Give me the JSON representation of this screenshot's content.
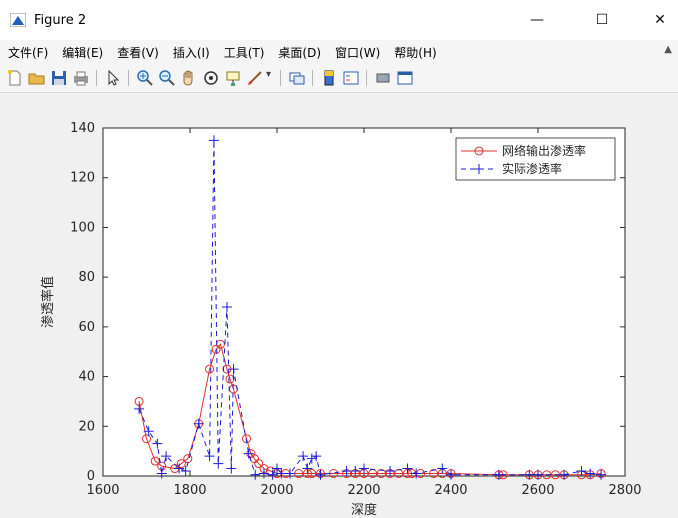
{
  "window": {
    "title": "Figure 2",
    "minimize": "—",
    "maximize": "☐",
    "close": "✕"
  },
  "menu": [
    {
      "label": "文件(F)"
    },
    {
      "label": "编辑(E)"
    },
    {
      "label": "查看(V)"
    },
    {
      "label": "插入(I)"
    },
    {
      "label": "工具(T)"
    },
    {
      "label": "桌面(D)"
    },
    {
      "label": "窗口(W)"
    },
    {
      "label": "帮助(H)"
    }
  ],
  "toolbar": {
    "icons": [
      "new-figure-icon",
      "open-file-icon",
      "save-icon",
      "print-icon",
      "pointer-icon",
      "zoom-in-icon",
      "zoom-out-icon",
      "pan-icon",
      "rotate-3d-icon",
      "data-cursor-icon",
      "brush-icon",
      "link-plot-icon",
      "colorbar-icon",
      "legend-icon",
      "hide-plot-tools-icon",
      "show-plot-tools-icon"
    ]
  },
  "chart_data": {
    "type": "line",
    "xlabel": "深度",
    "ylabel": "渗透率值",
    "xlim": [
      1600,
      2800
    ],
    "ylim": [
      0,
      140
    ],
    "xticks": [
      1600,
      1800,
      2000,
      2200,
      2400,
      2600,
      2800
    ],
    "yticks": [
      0,
      20,
      40,
      60,
      80,
      100,
      120,
      140
    ],
    "legend_position": "top-right",
    "colors": {
      "predicted": "#e0302e",
      "actual": "#1b1bd9"
    },
    "series": [
      {
        "name": "网络输出渗透率",
        "style": "solid-circle",
        "x": [
          1683,
          1700,
          1720,
          1735,
          1765,
          1780,
          1795,
          1820,
          1845,
          1860,
          1870,
          1885,
          1892,
          1900,
          1930,
          1940,
          1948,
          1958,
          1970,
          1985,
          2000,
          2020,
          2050,
          2070,
          2080,
          2100,
          2130,
          2160,
          2180,
          2200,
          2220,
          2240,
          2260,
          2280,
          2300,
          2310,
          2330,
          2360,
          2380,
          2400,
          2510,
          2520,
          2580,
          2600,
          2620,
          2640,
          2660,
          2700,
          2720,
          2745
        ],
        "y": [
          30,
          15,
          6,
          4,
          3,
          5,
          7,
          21,
          43,
          51,
          53,
          43,
          39,
          35,
          15,
          9,
          7,
          5,
          3,
          2,
          1,
          1,
          1,
          1,
          1,
          1,
          1,
          1,
          1,
          1,
          1,
          1,
          1,
          1,
          1,
          1,
          1,
          1,
          1,
          1,
          0.5,
          0.5,
          0.5,
          0.5,
          0.5,
          0.5,
          0.5,
          0.5,
          0.5,
          1
        ]
      },
      {
        "name": "实际渗透率",
        "style": "dashed-plus",
        "x": [
          1683,
          1705,
          1725,
          1735,
          1745,
          1775,
          1790,
          1820,
          1845,
          1855,
          1865,
          1885,
          1895,
          1900,
          1935,
          1950,
          1970,
          1990,
          2000,
          2010,
          2030,
          2060,
          2070,
          2080,
          2090,
          2100,
          2160,
          2180,
          2200,
          2260,
          2300,
          2320,
          2380,
          2400,
          2510,
          2580,
          2600,
          2660,
          2700,
          2720,
          2745
        ],
        "y": [
          27,
          18,
          13,
          1,
          8,
          3,
          2,
          21,
          8,
          135,
          5,
          68,
          3,
          43,
          9,
          0.5,
          1,
          0.5,
          3,
          1,
          1,
          8,
          3,
          7,
          8,
          0.5,
          2,
          2,
          3,
          2,
          3,
          1,
          3,
          0.5,
          0.5,
          0.5,
          0.5,
          0.5,
          2,
          1,
          0.5
        ]
      }
    ]
  }
}
